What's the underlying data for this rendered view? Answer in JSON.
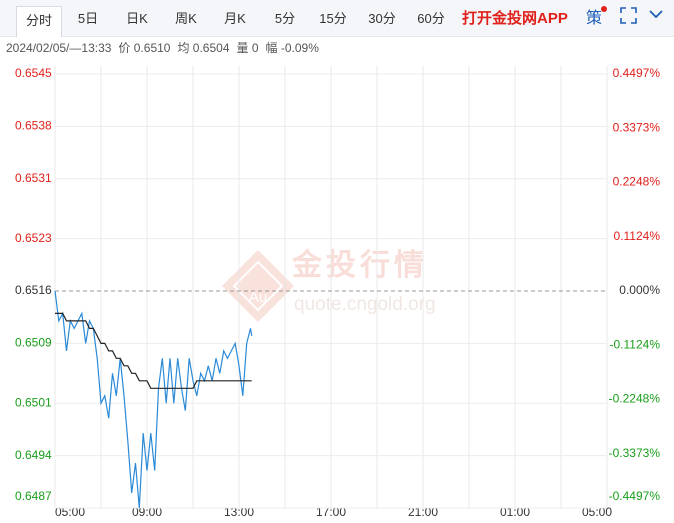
{
  "tabs": [
    "分时",
    "5日",
    "日K",
    "周K",
    "月K",
    "5分",
    "15分",
    "30分",
    "60分"
  ],
  "app_link": "打开金投网APP",
  "strategy": "策",
  "info": [
    "2024/02/05/—13:33",
    "价 0.6510",
    "均 0.6504",
    "量 0",
    "幅 -0.09%"
  ],
  "chart_data": {
    "type": "line",
    "watermark": [
      "金投行情",
      "quote.cngold.org",
      "Au"
    ],
    "x": [
      "05:00",
      "05:10",
      "05:20",
      "05:30",
      "05:40",
      "05:50",
      "06:00",
      "06:10",
      "06:20",
      "06:30",
      "06:40",
      "06:50",
      "07:00",
      "07:10",
      "07:20",
      "07:30",
      "07:40",
      "07:50",
      "08:00",
      "08:10",
      "08:20",
      "08:30",
      "08:40",
      "08:50",
      "09:00",
      "09:10",
      "09:20",
      "09:30",
      "09:40",
      "09:50",
      "10:00",
      "10:10",
      "10:20",
      "10:30",
      "10:40",
      "10:50",
      "11:00",
      "11:10",
      "11:20",
      "11:30",
      "11:40",
      "11:50",
      "12:00",
      "12:10",
      "12:20",
      "12:30",
      "12:40",
      "12:50",
      "13:00",
      "13:10",
      "13:20",
      "13:30",
      "13:33"
    ],
    "series": [
      {
        "name": "价",
        "color": "#2a8ad8",
        "values": [
          0.6516,
          0.6512,
          0.6513,
          0.6508,
          0.6512,
          0.6511,
          0.6512,
          0.6513,
          0.6509,
          0.6512,
          0.6511,
          0.6507,
          0.6501,
          0.6502,
          0.6499,
          0.6505,
          0.6502,
          0.6507,
          0.6502,
          0.6496,
          0.6489,
          0.6493,
          0.6487,
          0.6497,
          0.6492,
          0.6497,
          0.6492,
          0.6503,
          0.6507,
          0.6501,
          0.6507,
          0.6501,
          0.6507,
          0.6503,
          0.65,
          0.6507,
          0.6504,
          0.6502,
          0.6505,
          0.6504,
          0.6506,
          0.6504,
          0.6507,
          0.6505,
          0.6508,
          0.6507,
          0.6508,
          0.6509,
          0.6506,
          0.6502,
          0.6509,
          0.6511,
          0.651
        ]
      },
      {
        "name": "均",
        "color": "#222222",
        "values": [
          0.6513,
          0.6513,
          0.6513,
          0.6512,
          0.6512,
          0.6512,
          0.6512,
          0.6512,
          0.6512,
          0.6511,
          0.6511,
          0.651,
          0.6509,
          0.6509,
          0.6508,
          0.6508,
          0.6507,
          0.6507,
          0.6506,
          0.6506,
          0.6505,
          0.6505,
          0.6504,
          0.6504,
          0.6504,
          0.6503,
          0.6503,
          0.6503,
          0.6503,
          0.6503,
          0.6503,
          0.6503,
          0.6503,
          0.6503,
          0.6503,
          0.6503,
          0.6503,
          0.6504,
          0.6504,
          0.6504,
          0.6504,
          0.6504,
          0.6504,
          0.6504,
          0.6504,
          0.6504,
          0.6504,
          0.6504,
          0.6504,
          0.6504,
          0.6504,
          0.6504,
          0.6504
        ]
      }
    ],
    "base_value": 0.6516,
    "xticks": [
      "05:00",
      "09:00",
      "13:00",
      "17:00",
      "21:00",
      "01:00",
      "05:00"
    ],
    "ylim": [
      0.6487,
      0.6545
    ],
    "yticks": [
      0.6487,
      0.6494,
      0.6501,
      0.6509,
      0.6516,
      0.6523,
      0.6531,
      0.6538,
      0.6545
    ],
    "y2lim": [
      -0.4497,
      0.4497
    ],
    "y2ticks": [
      {
        "value": -0.4497,
        "label": "-0.4497%"
      },
      {
        "value": -0.3373,
        "label": "-0.3373%"
      },
      {
        "value": -0.2248,
        "label": "-0.2248%"
      },
      {
        "value": -0.1124,
        "label": "-0.1124%"
      },
      {
        "value": 0,
        "label": "0.000%"
      },
      {
        "value": 0.1124,
        "label": "0.1124%"
      },
      {
        "value": 0.2248,
        "label": "0.2248%"
      },
      {
        "value": 0.3373,
        "label": "0.3373%"
      },
      {
        "value": 0.4497,
        "label": "0.4497%"
      }
    ],
    "colors": {
      "up": "#e0201a",
      "flat": "#333333",
      "down": "#1a9e1a"
    },
    "grid": true
  }
}
